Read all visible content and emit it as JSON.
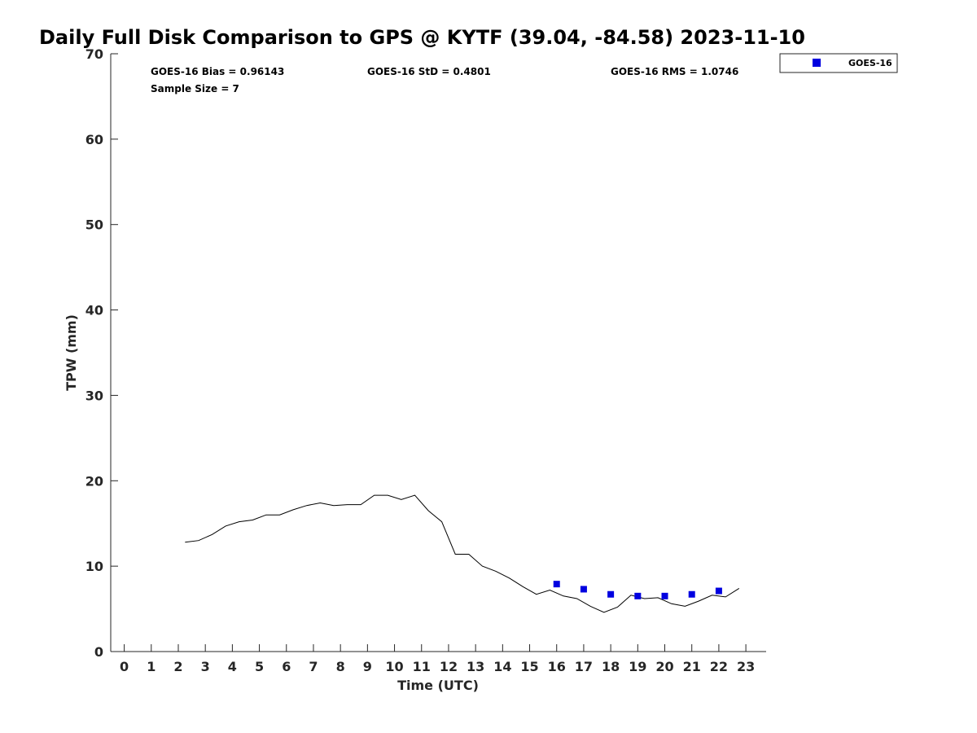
{
  "chart_data": {
    "type": "line",
    "title": "Daily Full Disk Comparison to GPS @ KYTF (39.04, -84.58) 2023-11-10",
    "xlabel": "Time (UTC)",
    "ylabel": "TPW (mm)",
    "xlim": [
      -0.5,
      23.75
    ],
    "ylim": [
      0,
      70
    ],
    "x_ticks": [
      "0",
      "1",
      "2",
      "3",
      "4",
      "5",
      "6",
      "7",
      "8",
      "9",
      "10",
      "11",
      "12",
      "13",
      "14",
      "15",
      "16",
      "17",
      "18",
      "19",
      "20",
      "21",
      "22",
      "23"
    ],
    "y_ticks": [
      "0",
      "10",
      "20",
      "30",
      "40",
      "50",
      "60",
      "70"
    ],
    "grid": false,
    "legend_position": "top-right, outside plot",
    "stats": {
      "bias": "GOES-16 Bias = 0.96143",
      "std": "GOES-16 StD = 0.4801",
      "rms": "GOES-16 RMS = 1.0746",
      "sample": "Sample Size = 7"
    },
    "series": [
      {
        "style": "line",
        "color": "#000000",
        "x": [
          2.25,
          2.75,
          3.25,
          3.75,
          4.25,
          4.75,
          5.25,
          5.75,
          6.25,
          6.75,
          7.25,
          7.75,
          8.25,
          8.75,
          9.25,
          9.75,
          10.25,
          10.75,
          11.25,
          11.75,
          12.25,
          12.75,
          13.25,
          13.75,
          14.25,
          14.75,
          15.25,
          15.75,
          16.25,
          16.75,
          17.25,
          17.75,
          18.25,
          18.75,
          19.25,
          19.75,
          20.25,
          20.75,
          21.25,
          21.75,
          22.25,
          22.75
        ],
        "values": [
          12.8,
          13.0,
          13.7,
          14.7,
          15.2,
          15.4,
          16.0,
          16.0,
          16.6,
          17.1,
          17.4,
          17.1,
          17.2,
          17.2,
          18.3,
          18.3,
          17.8,
          18.3,
          16.5,
          15.2,
          11.4,
          11.4,
          10.0,
          9.4,
          8.6,
          7.6,
          6.7,
          7.2,
          6.5,
          6.2,
          5.3,
          4.6,
          5.2,
          6.6,
          6.2,
          6.3,
          5.6,
          5.3,
          5.9,
          6.6,
          6.4,
          7.4
        ]
      },
      {
        "name": "GOES-16",
        "style": "markers",
        "marker": "square",
        "color": "#0000e0",
        "x": [
          16,
          17,
          18,
          19,
          20,
          21,
          22
        ],
        "values": [
          7.9,
          7.3,
          6.7,
          6.5,
          6.5,
          6.7,
          7.1
        ]
      }
    ]
  }
}
